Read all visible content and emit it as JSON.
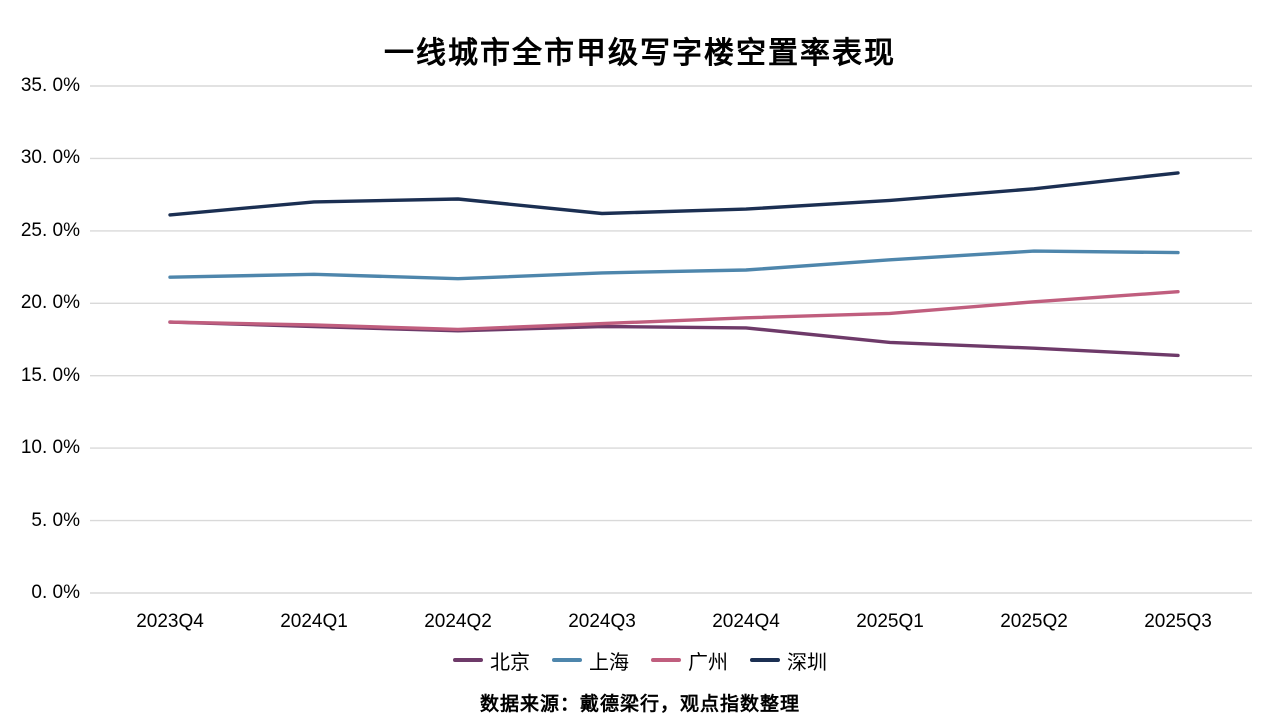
{
  "chart_data": {
    "type": "line",
    "title": "一线城市全市甲级写字楼空置率表现",
    "source_text": "数据来源：戴德梁行，观点指数整理",
    "categories": [
      "2023Q4",
      "2024Q1",
      "2024Q2",
      "2024Q3",
      "2024Q4",
      "2025Q1",
      "2025Q2",
      "2025Q3"
    ],
    "series": [
      {
        "name": "北京",
        "color": "#6E3A69",
        "values": [
          18.7,
          18.4,
          18.1,
          18.4,
          18.3,
          17.3,
          16.9,
          16.4
        ]
      },
      {
        "name": "上海",
        "color": "#4E86AC",
        "values": [
          21.8,
          22.0,
          21.7,
          22.1,
          22.3,
          23.0,
          23.6,
          23.5
        ]
      },
      {
        "name": "广州",
        "color": "#C05E7E",
        "values": [
          18.7,
          18.5,
          18.2,
          18.6,
          19.0,
          19.3,
          20.1,
          20.8
        ]
      },
      {
        "name": "深圳",
        "color": "#1B2F52",
        "values": [
          26.1,
          27.0,
          27.2,
          26.2,
          26.5,
          27.1,
          27.9,
          29.0
        ]
      }
    ],
    "ylabel": "",
    "xlabel": "",
    "ylim": [
      0,
      35
    ],
    "y_ticks": [
      0,
      5,
      10,
      15,
      20,
      25,
      30,
      35
    ],
    "y_tick_labels": [
      "0. 0%",
      "5. 0%",
      "10. 0%",
      "15. 0%",
      "20. 0%",
      "25. 0%",
      "30. 0%",
      "35. 0%"
    ],
    "grid": "horizontal",
    "gridline_color": "#d9d9d9",
    "legend_position": "bottom"
  }
}
